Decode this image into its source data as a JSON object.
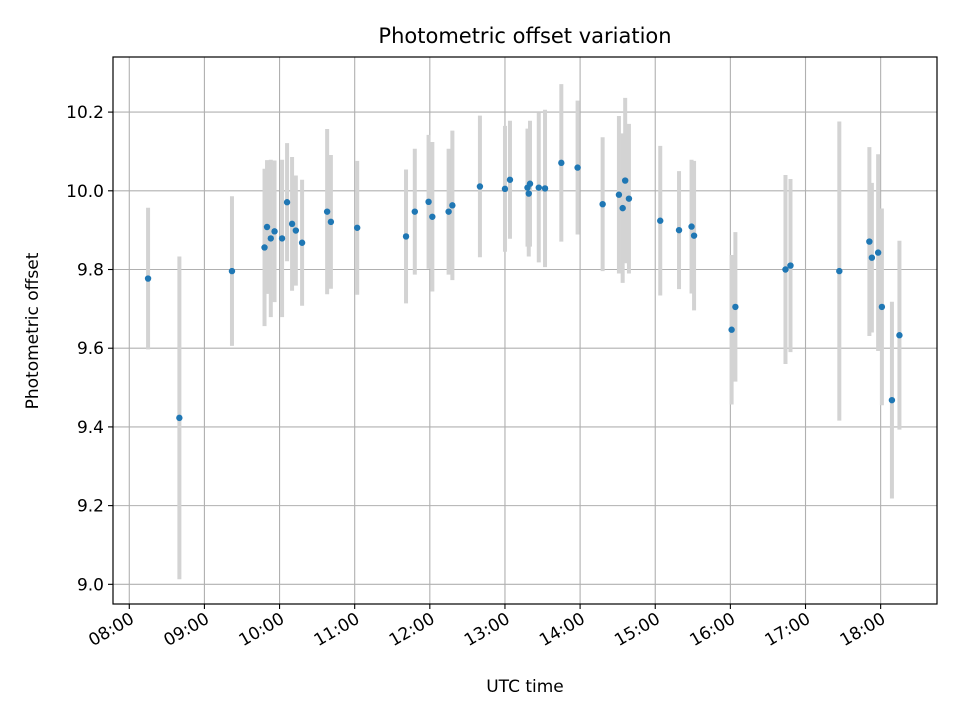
{
  "chart_data": {
    "type": "scatter",
    "title": "Photometric offset variation",
    "xlabel": "UTC time",
    "ylabel": "Photometric offset",
    "x_ticks": [
      "08:00",
      "09:00",
      "10:00",
      "11:00",
      "12:00",
      "13:00",
      "14:00",
      "15:00",
      "16:00",
      "17:00",
      "18:00"
    ],
    "y_ticks": [
      "9.0",
      "9.2",
      "9.4",
      "9.6",
      "9.8",
      "10.0",
      "10.2"
    ],
    "xlim": [
      "07:47",
      "18:45"
    ],
    "ylim": [
      8.95,
      10.34
    ],
    "grid": true,
    "legend": "none",
    "colors": {
      "points": "#1f77b4",
      "errorbars": "#d3d3d3",
      "grid": "#b0b0b0"
    },
    "series": [
      {
        "x": [
          "08:15",
          "08:40",
          "09:22",
          "09:48",
          "09:50",
          "09:53",
          "09:56",
          "10:02",
          "10:06",
          "10:10",
          "10:13",
          "10:18",
          "10:38",
          "10:41",
          "11:02",
          "11:41",
          "11:48",
          "11:59",
          "12:02",
          "12:15",
          "12:18",
          "12:40",
          "13:00",
          "13:04",
          "13:18",
          "13:19",
          "13:20",
          "13:27",
          "13:32",
          "13:45",
          "13:58",
          "14:18",
          "14:31",
          "14:34",
          "14:36",
          "14:39",
          "15:04",
          "15:19",
          "15:29",
          "15:31",
          "16:01",
          "16:04",
          "16:44",
          "16:48",
          "17:27",
          "17:51",
          "17:53",
          "17:58",
          "18:01",
          "18:09",
          "18:15"
        ],
        "y": [
          9.777,
          9.423,
          9.796,
          9.856,
          9.908,
          9.879,
          9.897,
          9.879,
          9.971,
          9.916,
          9.899,
          9.868,
          9.947,
          9.921,
          9.906,
          9.884,
          9.947,
          9.972,
          9.934,
          9.947,
          9.963,
          10.011,
          10.005,
          10.028,
          10.008,
          9.993,
          10.018,
          10.008,
          10.006,
          10.071,
          10.059,
          9.966,
          9.99,
          9.956,
          10.026,
          9.98,
          9.924,
          9.9,
          9.909,
          9.886,
          9.647,
          9.705,
          9.8,
          9.81,
          9.796,
          9.871,
          9.83,
          9.843,
          9.705,
          9.468,
          9.633
        ],
        "yerr": [
          0.18,
          0.41,
          0.19,
          0.2,
          0.17,
          0.2,
          0.18,
          0.2,
          0.15,
          0.17,
          0.14,
          0.16,
          0.21,
          0.17,
          0.17,
          0.17,
          0.16,
          0.17,
          0.19,
          0.16,
          0.19,
          0.18,
          0.16,
          0.15,
          0.15,
          0.16,
          0.16,
          0.19,
          0.2,
          0.2,
          0.17,
          0.17,
          0.2,
          0.19,
          0.21,
          0.19,
          0.19,
          0.15,
          0.17,
          0.19,
          0.19,
          0.19,
          0.24,
          0.22,
          0.38,
          0.24,
          0.19,
          0.25,
          0.25,
          0.25,
          0.24
        ]
      }
    ]
  }
}
